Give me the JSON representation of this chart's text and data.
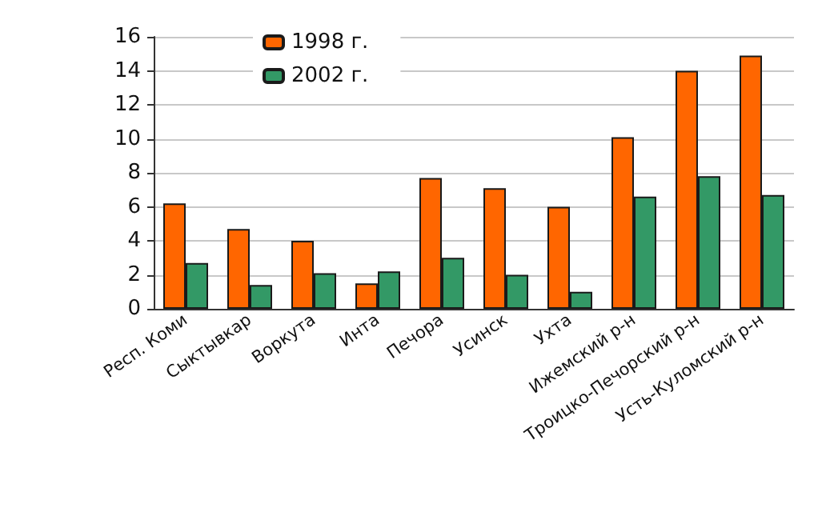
{
  "chart_data": {
    "type": "bar",
    "categories": [
      "Респ. Коми",
      "Сыктывкар",
      "Воркута",
      "Инта",
      "Печора",
      "Усинск",
      "Ухта",
      "Ижемский р-н",
      "Троицко-Печорский р-н",
      "Усть-Куломский р-н"
    ],
    "series": [
      {
        "name": "1998 г.",
        "color": "#ff6600",
        "values": [
          6.2,
          4.7,
          4.0,
          1.5,
          7.7,
          7.1,
          6.0,
          10.1,
          14.0,
          14.9
        ]
      },
      {
        "name": "2002 г.",
        "color": "#339966",
        "values": [
          2.7,
          1.4,
          2.1,
          2.2,
          3.0,
          2.0,
          1.0,
          6.6,
          7.8,
          6.7
        ]
      }
    ],
    "ylim": [
      0,
      16
    ],
    "yticks": [
      0,
      2,
      4,
      6,
      8,
      10,
      12,
      14,
      16
    ],
    "grid": "y",
    "legend": "top left"
  }
}
